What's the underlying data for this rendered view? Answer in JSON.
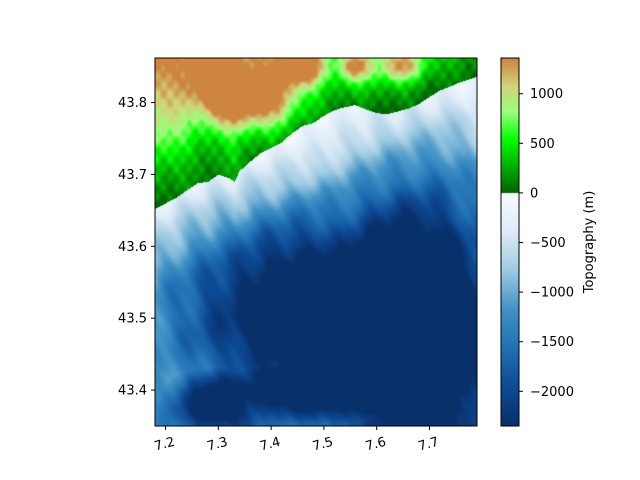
{
  "chart_data": {
    "type": "heatmap",
    "title": "",
    "xlabel": "",
    "ylabel": "",
    "xlim": [
      7.18,
      7.79
    ],
    "ylim": [
      43.35,
      43.862
    ],
    "x_ticks": [
      {
        "value": 7.2,
        "label": "7.2"
      },
      {
        "value": 7.3,
        "label": "7.3"
      },
      {
        "value": 7.4,
        "label": "7.4"
      },
      {
        "value": 7.5,
        "label": "7.5"
      },
      {
        "value": 7.6,
        "label": "7.6"
      },
      {
        "value": 7.7,
        "label": "7.7"
      }
    ],
    "y_ticks": [
      {
        "value": 43.4,
        "label": "43.4"
      },
      {
        "value": 43.5,
        "label": "43.5"
      },
      {
        "value": 43.6,
        "label": "43.6"
      },
      {
        "value": 43.7,
        "label": "43.7"
      },
      {
        "value": 43.8,
        "label": "43.8"
      }
    ],
    "x_tick_rotation_deg": 15,
    "colorbar": {
      "label": "Topography (m)",
      "range": [
        -2350,
        1360
      ],
      "ticks": [
        {
          "value": -2000,
          "label": "−2000"
        },
        {
          "value": -1500,
          "label": "−1500"
        },
        {
          "value": -1000,
          "label": "−1000"
        },
        {
          "value": -500,
          "label": "−500"
        },
        {
          "value": 0,
          "label": "0"
        },
        {
          "value": 500,
          "label": "500"
        },
        {
          "value": 1000,
          "label": "1000"
        }
      ],
      "ocean_colors": [
        "#08306b",
        "#0d4a95",
        "#2171b5",
        "#4292c6",
        "#9ecae1",
        "#deebf7",
        "#f7fbff"
      ],
      "land_colors": [
        "#006400",
        "#00b000",
        "#00ff00",
        "#9aff7a",
        "#d2d27a",
        "#cd853f"
      ]
    },
    "coastline_profile": [
      [
        7.18,
        43.652
      ],
      [
        7.2,
        43.66
      ],
      [
        7.22,
        43.668
      ],
      [
        7.24,
        43.678
      ],
      [
        7.26,
        43.688
      ],
      [
        7.28,
        43.69
      ],
      [
        7.3,
        43.7
      ],
      [
        7.32,
        43.695
      ],
      [
        7.33,
        43.69
      ],
      [
        7.34,
        43.705
      ],
      [
        7.36,
        43.718
      ],
      [
        7.38,
        43.73
      ],
      [
        7.4,
        43.737
      ],
      [
        7.42,
        43.745
      ],
      [
        7.44,
        43.758
      ],
      [
        7.46,
        43.768
      ],
      [
        7.48,
        43.772
      ],
      [
        7.5,
        43.782
      ],
      [
        7.52,
        43.79
      ],
      [
        7.54,
        43.794
      ],
      [
        7.56,
        43.797
      ],
      [
        7.58,
        43.791
      ],
      [
        7.6,
        43.786
      ],
      [
        7.62,
        43.784
      ],
      [
        7.64,
        43.788
      ],
      [
        7.66,
        43.792
      ],
      [
        7.68,
        43.798
      ],
      [
        7.7,
        43.808
      ],
      [
        7.72,
        43.817
      ],
      [
        7.74,
        43.823
      ],
      [
        7.76,
        43.829
      ],
      [
        7.79,
        43.836
      ]
    ],
    "bathymetry_features": [
      {
        "center": [
          7.48,
          43.52
        ],
        "radius": [
          0.28,
          0.14
        ],
        "depth": -2200
      },
      {
        "center": [
          7.68,
          43.5
        ],
        "radius": [
          0.16,
          0.22
        ],
        "depth": -2300
      },
      {
        "center": [
          7.3,
          43.38
        ],
        "radius": [
          0.1,
          0.05
        ],
        "depth": -1900
      },
      {
        "center": [
          7.5,
          43.4
        ],
        "radius": [
          0.2,
          0.05
        ],
        "depth": -1900
      }
    ],
    "land_features": [
      {
        "center": [
          7.29,
          43.835
        ],
        "radius": [
          0.04,
          0.03
        ],
        "height": 1150
      },
      {
        "center": [
          7.33,
          43.8
        ],
        "radius": [
          0.05,
          0.035
        ],
        "height": 1050
      },
      {
        "center": [
          7.4,
          43.81
        ],
        "radius": [
          0.05,
          0.04
        ],
        "height": 1000
      },
      {
        "center": [
          7.46,
          43.85
        ],
        "radius": [
          0.04,
          0.025
        ],
        "height": 1250
      },
      {
        "center": [
          7.56,
          43.85
        ],
        "radius": [
          0.03,
          0.02
        ],
        "height": 900
      },
      {
        "center": [
          7.65,
          43.85
        ],
        "radius": [
          0.04,
          0.02
        ],
        "height": 750
      }
    ]
  }
}
